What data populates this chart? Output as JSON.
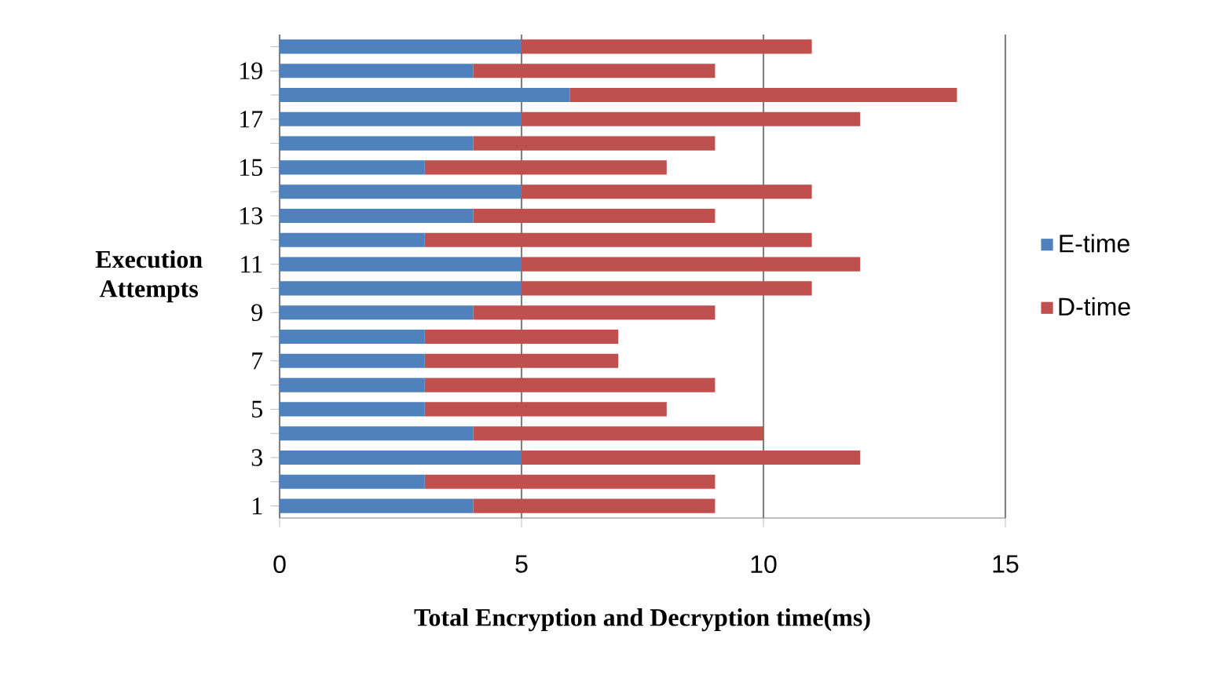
{
  "chart_data": {
    "type": "bar",
    "orientation": "horizontal",
    "stacked": true,
    "xlabel": "Total Encryption and Decryption time(ms)",
    "ylabel": "Execution Attempts",
    "categories": [
      null,
      "19",
      null,
      "17",
      null,
      "15",
      null,
      "13",
      null,
      "11",
      null,
      "9",
      null,
      "7",
      null,
      "5",
      null,
      "3",
      null,
      "1"
    ],
    "series": [
      {
        "name": "E-time",
        "color": "#4f81bd",
        "values": [
          5,
          4,
          6,
          5,
          4,
          3,
          5,
          4,
          3,
          5,
          5,
          4,
          3,
          3,
          3,
          3,
          4,
          5,
          3,
          4
        ]
      },
      {
        "name": "D-time",
        "color": "#c0504d",
        "values": [
          6,
          5,
          8,
          7,
          5,
          5,
          6,
          5,
          8,
          7,
          6,
          5,
          4,
          4,
          6,
          5,
          6,
          7,
          6,
          5
        ]
      }
    ],
    "xlim": [
      0,
      15
    ],
    "xticks": [
      0,
      5,
      10,
      15
    ],
    "grid": "x",
    "legend": "right"
  }
}
